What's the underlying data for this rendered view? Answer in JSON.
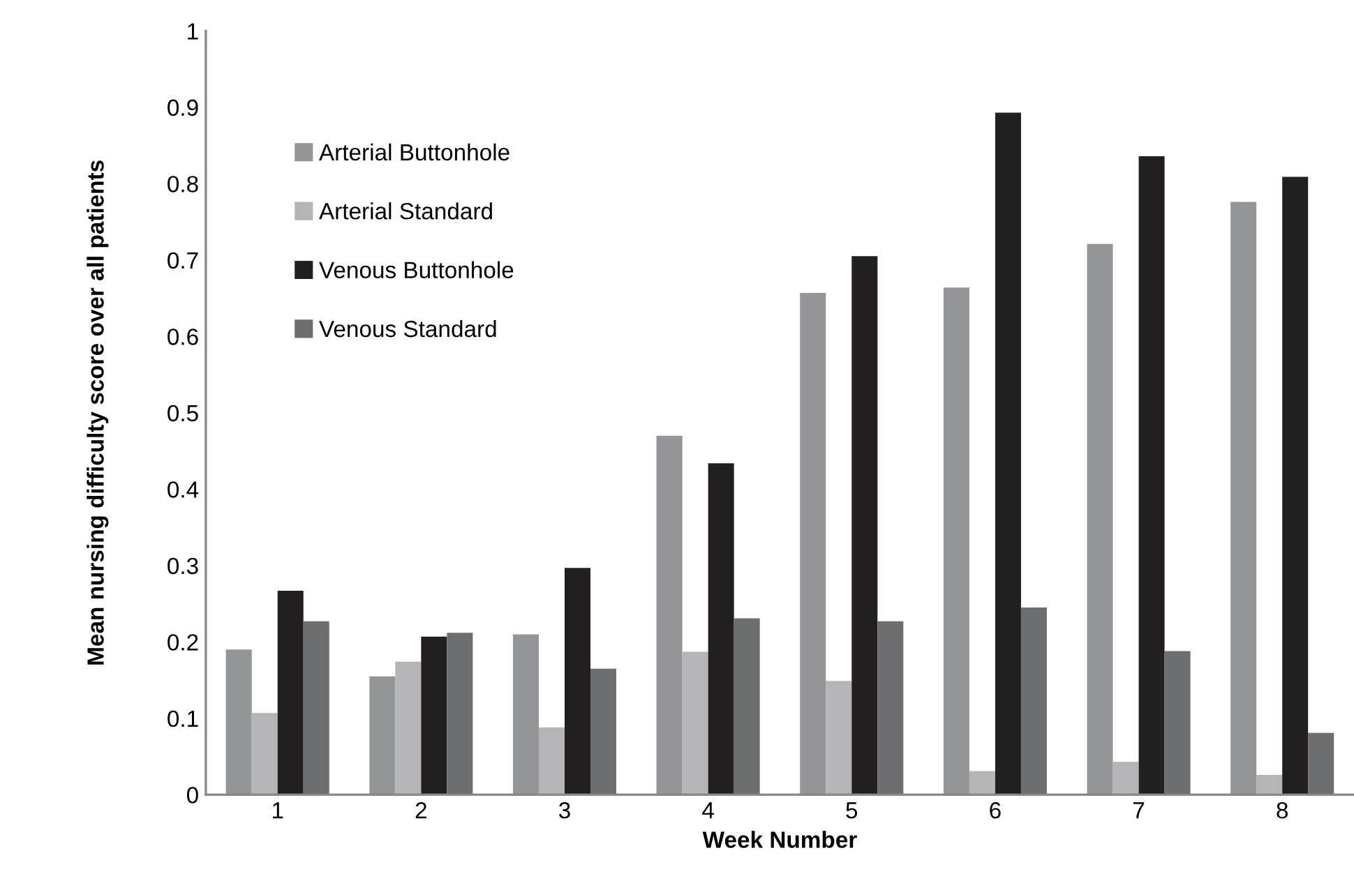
{
  "chart_data": {
    "type": "bar",
    "xlabel": "Week Number",
    "ylabel": "Mean nursing difficulty score over all patients",
    "categories": [
      "1",
      "2",
      "3",
      "4",
      "5",
      "6",
      "7",
      "8"
    ],
    "series": [
      {
        "name": "Arterial Buttonhole",
        "color": "#939598",
        "values": [
          0.19,
          0.155,
          0.21,
          0.47,
          0.657,
          0.664,
          0.721,
          0.776
        ]
      },
      {
        "name": "Arterial Standard",
        "color": "#b5b5b7",
        "values": [
          0.107,
          0.174,
          0.088,
          0.187,
          0.149,
          0.031,
          0.043,
          0.026
        ]
      },
      {
        "name": "Venous Buttonhole",
        "color": "#231f20",
        "values": [
          0.267,
          0.207,
          0.297,
          0.434,
          0.705,
          0.893,
          0.836,
          0.809
        ]
      },
      {
        "name": "Venous Standard",
        "color": "#6d6e70",
        "values": [
          0.227,
          0.212,
          0.165,
          0.231,
          0.227,
          0.245,
          0.188,
          0.081
        ]
      }
    ],
    "ylim": [
      0,
      1
    ],
    "yticks": [
      0,
      0.1,
      0.2,
      0.3,
      0.4,
      0.5,
      0.6,
      0.7,
      0.8,
      0.9,
      1
    ],
    "grid": false,
    "legend": "top left"
  }
}
